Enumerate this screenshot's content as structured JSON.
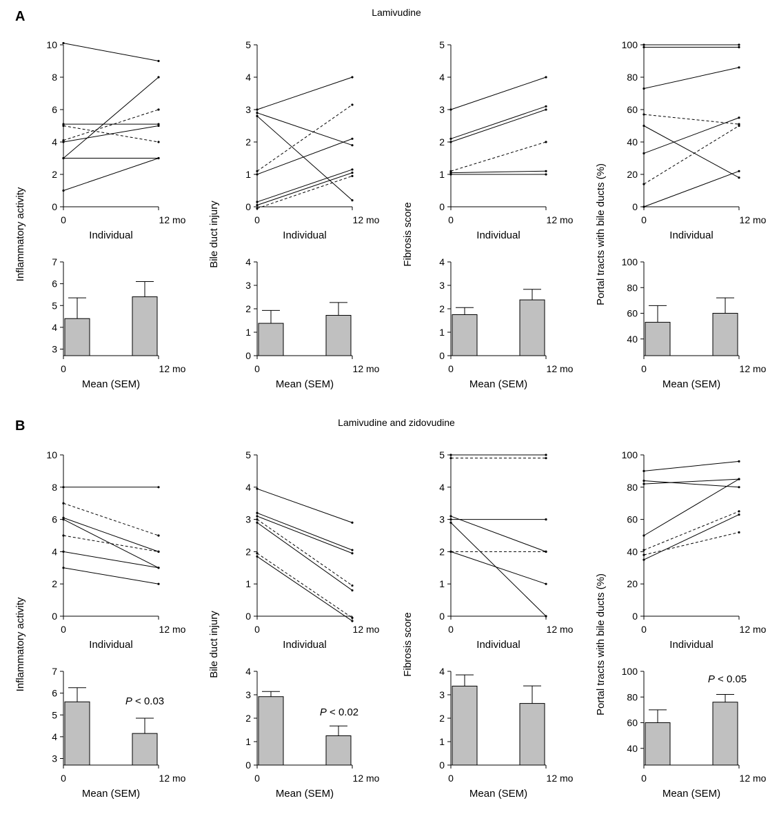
{
  "figure": {
    "panel_letters": [
      "A",
      "B"
    ],
    "panel_titles": [
      "Lamivudine",
      "Lamivudine and zidovudine"
    ]
  },
  "labels": {
    "x_indiv": "Individual",
    "x_mean": "Mean (SEM)",
    "x_ticks": [
      "0",
      "12 mo"
    ],
    "ylabels": [
      "Inflammatory activity",
      "Bile duct injury",
      "Fibrosis score",
      "Portal tracts with bile ducts (%)"
    ]
  },
  "colors": {
    "bar_fill": "#c0c0c0",
    "line": "#000000"
  },
  "chart_data": [
    {
      "type": "line",
      "panel": "A",
      "title": "",
      "xlabel": "Individual",
      "ylabel": "Inflammatory activity",
      "x": [
        "0",
        "12 mo"
      ],
      "ylim": [
        0,
        10
      ],
      "yticks": [
        0,
        2,
        4,
        6,
        8,
        10
      ],
      "series": [
        {
          "values": [
            10.1,
            9.0
          ],
          "style": "solid"
        },
        {
          "values": [
            5.1,
            5.1
          ],
          "style": "solid"
        },
        {
          "values": [
            4.0,
            5.0
          ],
          "style": "solid"
        },
        {
          "values": [
            3.0,
            8.0
          ],
          "style": "solid"
        },
        {
          "values": [
            3.0,
            3.0
          ],
          "style": "solid"
        },
        {
          "values": [
            1.0,
            3.0
          ],
          "style": "solid"
        },
        {
          "values": [
            5.0,
            4.0
          ],
          "style": "dashed"
        },
        {
          "values": [
            4.1,
            6.0
          ],
          "style": "dashed"
        }
      ]
    },
    {
      "type": "line",
      "panel": "A",
      "title": "",
      "xlabel": "Individual",
      "ylabel": "Bile duct injury",
      "x": [
        "0",
        "12 mo"
      ],
      "ylim": [
        0,
        5
      ],
      "yticks": [
        0,
        1,
        2,
        3,
        4,
        5
      ],
      "series": [
        {
          "values": [
            3.0,
            4.0
          ],
          "style": "solid"
        },
        {
          "values": [
            2.9,
            1.9
          ],
          "style": "solid"
        },
        {
          "values": [
            2.8,
            0.2
          ],
          "style": "solid"
        },
        {
          "values": [
            1.0,
            2.1
          ],
          "style": "solid"
        },
        {
          "values": [
            0.15,
            1.15
          ],
          "style": "solid"
        },
        {
          "values": [
            0.05,
            1.05
          ],
          "style": "solid"
        },
        {
          "values": [
            1.1,
            3.15
          ],
          "style": "dashed"
        },
        {
          "values": [
            -0.05,
            0.95
          ],
          "style": "dashed"
        }
      ]
    },
    {
      "type": "line",
      "panel": "A",
      "title": "",
      "xlabel": "Individual",
      "ylabel": "Fibrosis score",
      "x": [
        "0",
        "12 mo"
      ],
      "ylim": [
        0,
        5
      ],
      "yticks": [
        0,
        1,
        2,
        3,
        4,
        5
      ],
      "series": [
        {
          "values": [
            3.0,
            4.0
          ],
          "style": "solid"
        },
        {
          "values": [
            2.1,
            3.1
          ],
          "style": "solid"
        },
        {
          "values": [
            2.0,
            3.0
          ],
          "style": "solid"
        },
        {
          "values": [
            1.05,
            1.1
          ],
          "style": "solid"
        },
        {
          "values": [
            1.0,
            1.0
          ],
          "style": "solid"
        },
        {
          "values": [
            1.1,
            2.0
          ],
          "style": "dashed"
        }
      ]
    },
    {
      "type": "line",
      "panel": "A",
      "title": "",
      "xlabel": "Individual",
      "ylabel": "Portal tracts with bile ducts (%)",
      "x": [
        "0",
        "12 mo"
      ],
      "ylim": [
        0,
        100
      ],
      "yticks": [
        0,
        20,
        40,
        60,
        80,
        100
      ],
      "series": [
        {
          "values": [
            100,
            100
          ],
          "style": "solid"
        },
        {
          "values": [
            98.5,
            98.5
          ],
          "style": "solid"
        },
        {
          "values": [
            73,
            86
          ],
          "style": "solid"
        },
        {
          "values": [
            50,
            18
          ],
          "style": "solid"
        },
        {
          "values": [
            33,
            55
          ],
          "style": "solid"
        },
        {
          "values": [
            0,
            22
          ],
          "style": "solid"
        },
        {
          "values": [
            57,
            51
          ],
          "style": "dashed"
        },
        {
          "values": [
            14,
            50
          ],
          "style": "dashed"
        }
      ]
    },
    {
      "type": "bar",
      "panel": "A",
      "title": "",
      "xlabel": "Mean (SEM)",
      "ylabel": "Inflammatory activity",
      "categories": [
        "0",
        "12 mo"
      ],
      "values": [
        4.4,
        5.4
      ],
      "sem": [
        0.95,
        0.7
      ],
      "ylim": [
        2.7,
        7
      ],
      "yticks": [
        3,
        4,
        5,
        6,
        7
      ],
      "p_value": ""
    },
    {
      "type": "bar",
      "panel": "A",
      "title": "",
      "xlabel": "Mean (SEM)",
      "ylabel": "Bile duct injury",
      "categories": [
        "0",
        "12 mo"
      ],
      "values": [
        1.38,
        1.72
      ],
      "sem": [
        0.55,
        0.55
      ],
      "ylim": [
        0,
        4
      ],
      "yticks": [
        0,
        1,
        2,
        3,
        4
      ],
      "p_value": ""
    },
    {
      "type": "bar",
      "panel": "A",
      "title": "",
      "xlabel": "Mean (SEM)",
      "ylabel": "Fibrosis score",
      "categories": [
        "0",
        "12 mo"
      ],
      "values": [
        1.75,
        2.38
      ],
      "sem": [
        0.3,
        0.45
      ],
      "ylim": [
        0,
        4
      ],
      "yticks": [
        0,
        1,
        2,
        3,
        4
      ],
      "p_value": ""
    },
    {
      "type": "bar",
      "panel": "A",
      "title": "",
      "xlabel": "Mean (SEM)",
      "ylabel": "Portal tracts with bile ducts (%)",
      "categories": [
        "0",
        "12 mo"
      ],
      "values": [
        53,
        60
      ],
      "sem": [
        13,
        12
      ],
      "ylim": [
        27,
        100
      ],
      "yticks": [
        40,
        60,
        80,
        100
      ],
      "p_value": ""
    },
    {
      "type": "line",
      "panel": "B",
      "title": "",
      "xlabel": "Individual",
      "ylabel": "Inflammatory activity",
      "x": [
        "0",
        "12 mo"
      ],
      "ylim": [
        0,
        10
      ],
      "yticks": [
        0,
        2,
        4,
        6,
        8,
        10
      ],
      "series": [
        {
          "values": [
            8,
            8
          ],
          "style": "solid"
        },
        {
          "values": [
            6.1,
            4.0
          ],
          "style": "solid"
        },
        {
          "values": [
            6.0,
            3.0
          ],
          "style": "solid"
        },
        {
          "values": [
            4.0,
            3.0
          ],
          "style": "solid"
        },
        {
          "values": [
            3.0,
            2.0
          ],
          "style": "solid"
        },
        {
          "values": [
            7.0,
            5.0
          ],
          "style": "dashed"
        },
        {
          "values": [
            5.0,
            4.0
          ],
          "style": "dashed"
        }
      ]
    },
    {
      "type": "line",
      "panel": "B",
      "title": "",
      "xlabel": "Individual",
      "ylabel": "Bile duct injury",
      "x": [
        "0",
        "12 mo"
      ],
      "ylim": [
        0,
        5
      ],
      "yticks": [
        0,
        1,
        2,
        3,
        4,
        5
      ],
      "series": [
        {
          "values": [
            3.95,
            2.9
          ],
          "style": "solid"
        },
        {
          "values": [
            3.2,
            2.05
          ],
          "style": "solid"
        },
        {
          "values": [
            3.1,
            1.95
          ],
          "style": "solid"
        },
        {
          "values": [
            2.9,
            0.8
          ],
          "style": "solid"
        },
        {
          "values": [
            1.85,
            -0.15
          ],
          "style": "solid"
        },
        {
          "values": [
            3.0,
            0.95
          ],
          "style": "dashed"
        },
        {
          "values": [
            1.95,
            -0.05
          ],
          "style": "dashed"
        }
      ]
    },
    {
      "type": "line",
      "panel": "B",
      "title": "",
      "xlabel": "Individual",
      "ylabel": "Fibrosis score",
      "x": [
        "0",
        "12 mo"
      ],
      "ylim": [
        0,
        5
      ],
      "yticks": [
        0,
        1,
        2,
        3,
        4,
        5
      ],
      "series": [
        {
          "values": [
            5,
            5
          ],
          "style": "solid"
        },
        {
          "values": [
            3,
            3
          ],
          "style": "solid"
        },
        {
          "values": [
            3.1,
            2.0
          ],
          "style": "solid"
        },
        {
          "values": [
            2.9,
            0
          ],
          "style": "solid"
        },
        {
          "values": [
            2.0,
            1.0
          ],
          "style": "solid"
        },
        {
          "values": [
            4.9,
            4.9
          ],
          "style": "dashed"
        },
        {
          "values": [
            2,
            2
          ],
          "style": "dashed"
        }
      ]
    },
    {
      "type": "line",
      "panel": "B",
      "title": "",
      "xlabel": "Individual",
      "ylabel": "Portal tracts with bile ducts (%)",
      "x": [
        "0",
        "12 mo"
      ],
      "ylim": [
        0,
        100
      ],
      "yticks": [
        0,
        20,
        40,
        60,
        80,
        100
      ],
      "series": [
        {
          "values": [
            90,
            96
          ],
          "style": "solid"
        },
        {
          "values": [
            84,
            80
          ],
          "style": "solid"
        },
        {
          "values": [
            82,
            85
          ],
          "style": "solid"
        },
        {
          "values": [
            50,
            85
          ],
          "style": "solid"
        },
        {
          "values": [
            35,
            63
          ],
          "style": "solid"
        },
        {
          "values": [
            41,
            65
          ],
          "style": "dashed"
        },
        {
          "values": [
            38,
            52
          ],
          "style": "dashed"
        }
      ]
    },
    {
      "type": "bar",
      "panel": "B",
      "title": "",
      "xlabel": "Mean (SEM)",
      "ylabel": "Inflammatory activity",
      "categories": [
        "0",
        "12 mo"
      ],
      "values": [
        5.6,
        4.15
      ],
      "sem": [
        0.65,
        0.7
      ],
      "ylim": [
        2.7,
        7
      ],
      "yticks": [
        3,
        4,
        5,
        6,
        7
      ],
      "p_value": "P < 0.03"
    },
    {
      "type": "bar",
      "panel": "B",
      "title": "",
      "xlabel": "Mean (SEM)",
      "ylabel": "Bile duct injury",
      "categories": [
        "0",
        "12 mo"
      ],
      "values": [
        2.92,
        1.25
      ],
      "sem": [
        0.22,
        0.42
      ],
      "ylim": [
        0,
        4
      ],
      "yticks": [
        0,
        1,
        2,
        3,
        4
      ],
      "p_value": "P < 0.02"
    },
    {
      "type": "bar",
      "panel": "B",
      "title": "",
      "xlabel": "Mean (SEM)",
      "ylabel": "Fibrosis score",
      "categories": [
        "0",
        "12 mo"
      ],
      "values": [
        3.37,
        2.63
      ],
      "sem": [
        0.48,
        0.75
      ],
      "ylim": [
        0,
        4
      ],
      "yticks": [
        0,
        1,
        2,
        3,
        4
      ],
      "p_value": ""
    },
    {
      "type": "bar",
      "panel": "B",
      "title": "",
      "xlabel": "Mean (SEM)",
      "ylabel": "Portal tracts with bile ducts (%)",
      "categories": [
        "0",
        "12 mo"
      ],
      "values": [
        60,
        76
      ],
      "sem": [
        10,
        6
      ],
      "ylim": [
        27,
        100
      ],
      "yticks": [
        40,
        60,
        80,
        100
      ],
      "p_value": "P < 0.05"
    }
  ]
}
